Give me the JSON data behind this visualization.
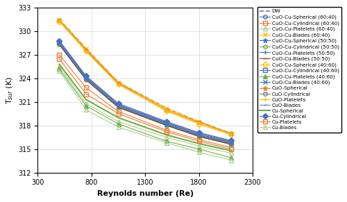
{
  "re": [
    500,
    750,
    1050,
    1500,
    1800,
    2100
  ],
  "ylim": [
    312,
    333
  ],
  "xlim": [
    300,
    2300
  ],
  "yticks": [
    312,
    315,
    318,
    321,
    324,
    327,
    330,
    333
  ],
  "xticks": [
    300,
    800,
    1300,
    1800,
    2300
  ],
  "ylabel": "T$_{sur}$ (K)",
  "xlabel": "Reynolds number (Re)",
  "series_data": {
    "DW": [
      331.5,
      327.8,
      323.5,
      320.2,
      318.5,
      317.0
    ],
    "CuO-Cu-Spherical (60:40)": [
      328.5,
      324.0,
      320.5,
      318.2,
      316.8,
      315.8
    ],
    "CuO-Cu-Cylindrical (60:40)": [
      327.0,
      322.8,
      319.8,
      317.4,
      316.2,
      315.2
    ],
    "CuO-Cu-Platelets (60:40)": [
      325.5,
      320.8,
      318.5,
      316.5,
      315.4,
      314.5
    ],
    "CuO-Cu-Blades (60:40)": [
      331.5,
      327.8,
      323.5,
      320.2,
      318.5,
      317.0
    ],
    "CuO-Cu-Spherical (50:50)": [
      328.5,
      324.0,
      320.5,
      318.2,
      316.8,
      315.8
    ],
    "CuO-Cu-Cylindrical (50:50)": [
      328.3,
      323.8,
      320.3,
      318.0,
      316.6,
      315.6
    ],
    "CuO-Cu-Platelets (50:50)": [
      328.4,
      323.9,
      320.4,
      318.1,
      316.7,
      315.7
    ],
    "CuO-Cu-Blades (50:50)": [
      328.3,
      323.8,
      320.3,
      318.0,
      316.6,
      315.6
    ],
    "CuO-Cu-Spherical (40:60)": [
      331.2,
      327.5,
      323.3,
      319.8,
      318.2,
      316.8
    ],
    "CuO-Cu-Cylindrical (40:60)": [
      328.6,
      324.1,
      320.6,
      318.3,
      316.9,
      315.9
    ],
    "CuO-Cu-Platelets (40:60)": [
      325.2,
      320.5,
      318.2,
      316.0,
      315.0,
      313.9
    ],
    "CuO-Cu-Blades (40:60)": [
      328.7,
      324.2,
      320.7,
      318.4,
      317.0,
      316.0
    ],
    "CuO-Spherical": [
      331.4,
      327.6,
      323.4,
      320.0,
      318.4,
      317.0
    ],
    "CuO-Cylindrical": [
      328.5,
      324.0,
      320.5,
      318.2,
      316.8,
      315.8
    ],
    "CuO-Platelets": [
      331.3,
      327.4,
      323.2,
      319.9,
      318.3,
      316.9
    ],
    "CuO-Blades": [
      328.4,
      323.9,
      320.4,
      318.1,
      316.7,
      315.7
    ],
    "Cu-Spherical": [
      325.8,
      321.3,
      319.0,
      316.8,
      315.7,
      314.8
    ],
    "Cu-Cylindrical": [
      328.8,
      324.3,
      320.8,
      318.5,
      317.1,
      316.1
    ],
    "Cu-Platelets": [
      326.5,
      322.0,
      319.5,
      317.2,
      316.0,
      315.0
    ],
    "Cu-Blades": [
      325.0,
      320.0,
      317.8,
      315.8,
      314.6,
      313.6
    ]
  },
  "series_style": {
    "DW": {
      "color": "#7F7F7F",
      "marker": "None",
      "ls": "--",
      "lw": 1.2,
      "ms": 4,
      "mfc": "none"
    },
    "CuO-Cu-Spherical (60:40)": {
      "color": "#4472C4",
      "marker": "o",
      "ls": "-",
      "lw": 0.8,
      "ms": 4,
      "mfc": "none"
    },
    "CuO-Cu-Cylindrical (60:40)": {
      "color": "#ED7D31",
      "marker": "s",
      "ls": "-",
      "lw": 0.8,
      "ms": 4,
      "mfc": "none"
    },
    "CuO-Cu-Platelets (60:40)": {
      "color": "#A9D18E",
      "marker": "^",
      "ls": "-",
      "lw": 0.8,
      "ms": 4,
      "mfc": "none"
    },
    "CuO-Cu-Blades (60:40)": {
      "color": "#FFC000",
      "marker": "x",
      "ls": "-",
      "lw": 0.8,
      "ms": 5
    },
    "CuO-Cu-Spherical (50:50)": {
      "color": "#4472C4",
      "marker": "*",
      "ls": "-",
      "lw": 0.8,
      "ms": 5,
      "mfc": "#4472C4"
    },
    "CuO-Cu-Cylindrical (50:50)": {
      "color": "#70AD47",
      "marker": "o",
      "ls": "-",
      "lw": 0.8,
      "ms": 4,
      "mfc": "none"
    },
    "CuO-Cu-Platelets (50:50)": {
      "color": "#4472C4",
      "marker": "+",
      "ls": "-",
      "lw": 0.8,
      "ms": 5,
      "mfc": "#4472C4"
    },
    "CuO-Cu-Blades (50:50)": {
      "color": "#843C0C",
      "marker": "_",
      "ls": "-",
      "lw": 0.8,
      "ms": 5,
      "mfc": "#843C0C"
    },
    "CuO-Cu-Spherical (40:60)": {
      "color": "#FFC000",
      "marker": "D",
      "ls": "-",
      "lw": 0.8,
      "ms": 4,
      "mfc": "none"
    },
    "CuO-Cu-Cylindrical (40:60)": {
      "color": "#4472C4",
      "marker": "s",
      "ls": "-",
      "lw": 0.8,
      "ms": 4,
      "mfc": "none"
    },
    "CuO-Cu-Platelets (40:60)": {
      "color": "#70AD47",
      "marker": "^",
      "ls": "-",
      "lw": 0.8,
      "ms": 4,
      "mfc": "#70AD47"
    },
    "CuO-Cu-Blades (40:60)": {
      "color": "#4472C4",
      "marker": "x",
      "ls": "-",
      "lw": 0.8,
      "ms": 5
    },
    "CuO-Spherical": {
      "color": "#ED7D31",
      "marker": "*",
      "ls": "-",
      "lw": 0.8,
      "ms": 5,
      "mfc": "#ED7D31"
    },
    "CuO-Cylindrical": {
      "color": "#7F7F7F",
      "marker": "o",
      "ls": "-",
      "lw": 0.8,
      "ms": 4,
      "mfc": "none"
    },
    "CuO-Platelets": {
      "color": "#FFC000",
      "marker": "+",
      "ls": "-",
      "lw": 0.8,
      "ms": 5,
      "mfc": "#FFC000"
    },
    "CuO-Blades": {
      "color": "#4472C4",
      "marker": "_",
      "ls": "--",
      "lw": 0.8,
      "ms": 5,
      "mfc": "#4472C4"
    },
    "Cu-Spherical": {
      "color": "#70AD47",
      "marker": "None",
      "ls": "-",
      "lw": 1.5,
      "ms": 4
    },
    "Cu-Cylindrical": {
      "color": "#4472C4",
      "marker": "D",
      "ls": "-",
      "lw": 0.8,
      "ms": 4,
      "mfc": "#4472C4"
    },
    "Cu-Platelets": {
      "color": "#ED7D31",
      "marker": "s",
      "ls": "-",
      "lw": 0.8,
      "ms": 4,
      "mfc": "none"
    },
    "Cu-Blades": {
      "color": "#A9D18E",
      "marker": "^",
      "ls": "-",
      "lw": 0.8,
      "ms": 4,
      "mfc": "none"
    }
  },
  "legend_order": [
    "DW",
    "CuO-Cu-Spherical (60:40)",
    "CuO-Cu-Cylindrical (60:40)",
    "CuO-Cu-Platelets (60:40)",
    "CuO-Cu-Blades (60:40)",
    "CuO-Cu-Spherical (50:50)",
    "CuO-Cu-Cylindrical (50:50)",
    "CuO-Cu-Platelets (50:50)",
    "CuO-Cu-Blades (50:50)",
    "CuO-Cu-Spherical (40:60)",
    "CuO-Cu-Cylindrical (40:60)",
    "CuO-Cu-Platelets (40:60)",
    "CuO-Cu-Blades (40:60)",
    "CuO-Spherical",
    "CuO-Cylindrical",
    "CuO-Platelets",
    "CuO-Blades",
    "Cu-Spherical",
    "Cu-Cylindrical",
    "Cu-Platelets",
    "Cu-Blades"
  ]
}
